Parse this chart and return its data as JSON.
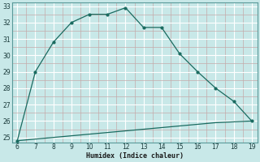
{
  "xlabel": "Humidex (Indice chaleur)",
  "x": [
    6,
    7,
    8,
    9,
    10,
    11,
    12,
    13,
    14,
    15,
    16,
    17,
    18,
    19
  ],
  "y_upper": [
    24.8,
    29.0,
    30.8,
    32.0,
    32.5,
    32.5,
    32.9,
    31.7,
    31.7,
    30.1,
    29.0,
    28.0,
    27.2,
    26.0
  ],
  "y_lower": [
    24.8,
    24.9,
    25.0,
    25.1,
    25.2,
    25.3,
    25.4,
    25.5,
    25.6,
    25.7,
    25.8,
    25.9,
    25.95,
    26.0
  ],
  "ylim": [
    24.7,
    33.2
  ],
  "xlim": [
    5.7,
    19.3
  ],
  "yticks": [
    25,
    26,
    27,
    28,
    29,
    30,
    31,
    32,
    33
  ],
  "xticks": [
    6,
    7,
    8,
    9,
    10,
    11,
    12,
    13,
    14,
    15,
    16,
    17,
    18,
    19
  ],
  "line_color": "#1a6b60",
  "bg_color": "#c8e8e8",
  "grid_major_color": "#aacccc",
  "grid_minor_color": "#bdd8d8",
  "grid_white_color": "#ddeaea"
}
